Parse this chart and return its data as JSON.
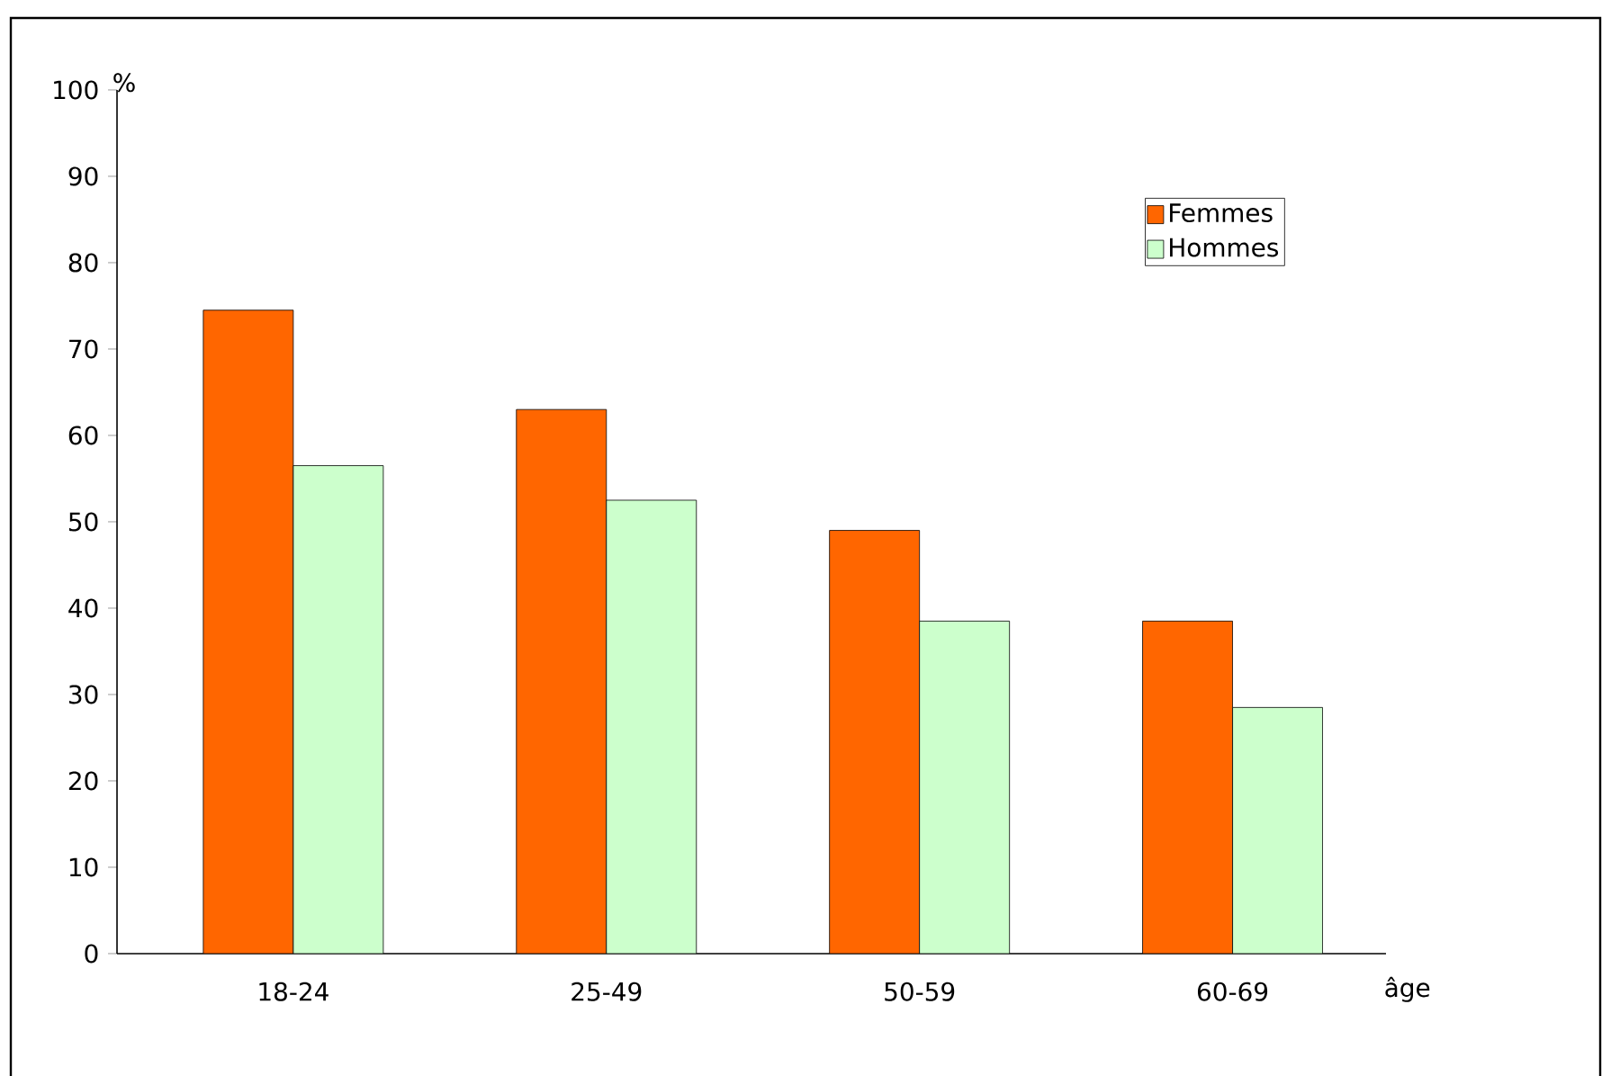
{
  "chart_data": {
    "type": "bar",
    "xlabel": "âge",
    "ylabel": "%",
    "categories": [
      "18-24",
      "25-49",
      "50-59",
      "60-69"
    ],
    "series": [
      {
        "name": "Femmes",
        "color": "#ff6600",
        "values": [
          74.5,
          63,
          49,
          38.5
        ]
      },
      {
        "name": "Hommes",
        "color": "#ccffcc",
        "values": [
          56.5,
          52.5,
          38.5,
          28.5
        ]
      }
    ],
    "ylim": [
      0,
      100
    ],
    "yticks": [
      0,
      10,
      20,
      30,
      40,
      50,
      60,
      70,
      80,
      90,
      100
    ],
    "grid": false,
    "legend": "top right"
  }
}
